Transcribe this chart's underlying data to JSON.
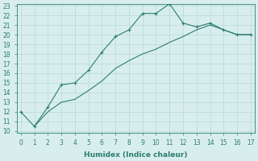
{
  "xlabel": "Humidex (Indice chaleur)",
  "line1_x": [
    0,
    1,
    2,
    3,
    4,
    5,
    6,
    7,
    8,
    9,
    10,
    11,
    12,
    13,
    14,
    15,
    16,
    17
  ],
  "line1_y": [
    12,
    10.5,
    12.5,
    14.8,
    15.0,
    16.3,
    18.2,
    19.8,
    20.5,
    22.2,
    22.2,
    23.2,
    21.2,
    20.8,
    21.2,
    20.5,
    20.0,
    20.0
  ],
  "line2_x": [
    1,
    2,
    3,
    4,
    5,
    6,
    7,
    8,
    9,
    10,
    11,
    12,
    13,
    14,
    15,
    16,
    17
  ],
  "line2_y": [
    10.5,
    12.0,
    13.0,
    13.3,
    14.2,
    15.2,
    16.5,
    17.3,
    18.0,
    18.5,
    19.2,
    19.8,
    20.5,
    21.0,
    20.5,
    20.0,
    20.0
  ],
  "line_color": "#2d7d6e",
  "bg_color": "#d8eeee",
  "grid_color": "#b8d8d8",
  "ylim_min": 10,
  "ylim_max": 23,
  "xlim_min": 0,
  "xlim_max": 17,
  "yticks": [
    10,
    11,
    12,
    13,
    14,
    15,
    16,
    17,
    18,
    19,
    20,
    21,
    22,
    23
  ],
  "xticks": [
    0,
    1,
    2,
    3,
    4,
    5,
    6,
    7,
    8,
    9,
    10,
    11,
    12,
    13,
    14,
    15,
    16,
    17
  ],
  "tick_fontsize": 5.5,
  "xlabel_fontsize": 6.5
}
